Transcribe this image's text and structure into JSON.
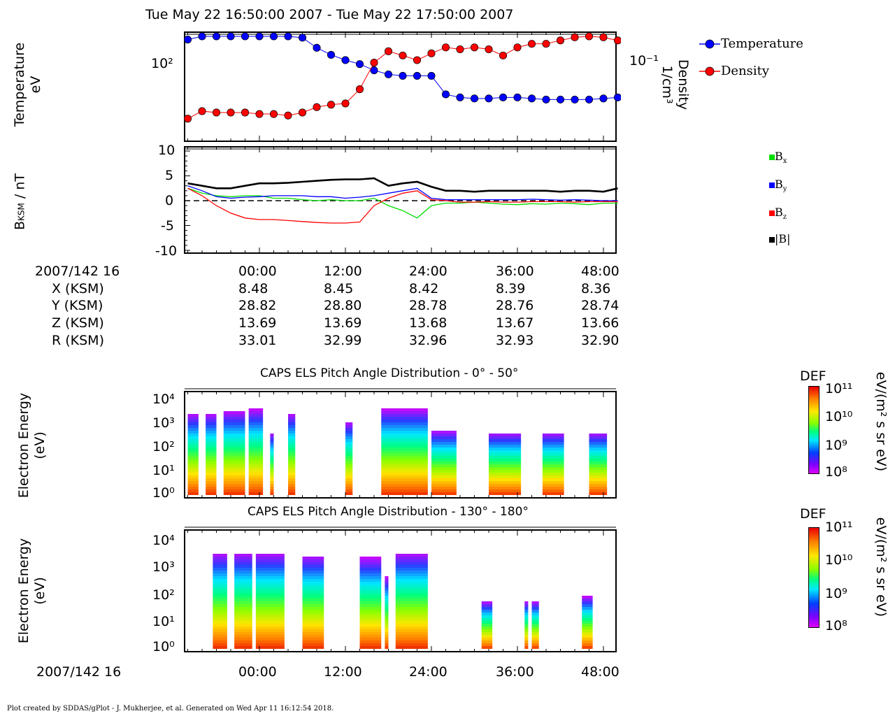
{
  "header": {
    "title": "Tue May 22 16:50:00 2007 - Tue May 22 17:50:00 2007"
  },
  "panel1": {
    "ylabel_left": "Temperature eV",
    "ylabel_left_line1": "Temperature",
    "ylabel_left_line2": "eV",
    "ylabel_right_line1": "Density",
    "ylabel_right_line2": "1/cm³",
    "left_tick": "10²",
    "right_tick": "10⁻¹",
    "legend": [
      {
        "label": "Temperature",
        "color": "#0000ff"
      },
      {
        "label": "Density",
        "color": "#ff0000"
      }
    ]
  },
  "panel2": {
    "ylabel": "BKSM / nT",
    "ylabel_main": "B",
    "ylabel_sub": "KSM",
    "ylabel_rest": " / nT",
    "yticks": [
      "10",
      "5",
      "0",
      "-5",
      "-10"
    ],
    "legend": [
      {
        "label": "B",
        "sub": "x",
        "color": "#00dd00"
      },
      {
        "label": "B",
        "sub": "y",
        "color": "#0000ff"
      },
      {
        "label": "B",
        "sub": "z",
        "color": "#ff0000"
      },
      {
        "label": "|B|",
        "sub": "",
        "color": "#000000"
      }
    ]
  },
  "ephemeris": {
    "date_label": "2007/142 16",
    "times": [
      "00:00",
      "12:00",
      "24:00",
      "36:00",
      "48:00"
    ],
    "rows": [
      {
        "label": "X (KSM)",
        "values": [
          "8.48",
          "8.45",
          "8.42",
          "8.39",
          "8.36"
        ]
      },
      {
        "label": "Y (KSM)",
        "values": [
          "28.82",
          "28.80",
          "28.78",
          "28.76",
          "28.74"
        ]
      },
      {
        "label": "Z (KSM)",
        "values": [
          "13.69",
          "13.69",
          "13.68",
          "13.67",
          "13.66"
        ]
      },
      {
        "label": "R (KSM)",
        "values": [
          "33.01",
          "32.99",
          "32.96",
          "32.93",
          "32.90"
        ]
      }
    ]
  },
  "spectrogram1": {
    "title": "CAPS ELS Pitch Angle Distribution - 0° - 50°",
    "ylabel_line1": "Electron Energy",
    "ylabel_line2": "(eV)",
    "yticks": [
      "10⁴",
      "10³",
      "10²",
      "10¹",
      "10⁰"
    ],
    "colorbar_title": "DEF",
    "colorbar_ticks": [
      "10¹¹",
      "10¹⁰",
      "10⁹",
      "10⁸"
    ],
    "colorbar_unit": "eV/(m² s sr eV)"
  },
  "spectrogram2": {
    "title": "CAPS ELS Pitch Angle Distribution - 130° - 180°",
    "ylabel_line1": "Electron Energy",
    "ylabel_line2": "(eV)",
    "yticks": [
      "10⁴",
      "10³",
      "10²",
      "10¹",
      "10⁰"
    ],
    "colorbar_title": "DEF",
    "colorbar_ticks": [
      "10¹¹",
      "10¹⁰",
      "10⁹",
      "10⁸"
    ],
    "colorbar_unit": "eV/(m² s sr eV)"
  },
  "bottom_axis": {
    "date_label": "2007/142 16",
    "times": [
      "00:00",
      "12:00",
      "24:00",
      "36:00",
      "48:00"
    ]
  },
  "footer": {
    "text": "Plot created by SDDAS/gPlot - J. Mukherjee, et al.  Generated on Wed Apr 11 16:12:54 2018."
  },
  "chart_data": [
    {
      "type": "scatter",
      "title": "Tue May 22 16:50:00 2007 - Tue May 22 17:50:00 2007",
      "xlabel": "",
      "ylabel": "Temperature eV",
      "y2label": "Density 1/cm³",
      "x_unit": "minutes after 17:00 (tick labels 00:00..48:00)",
      "xlim": [
        -10,
        50
      ],
      "yscale": "log",
      "series": [
        {
          "name": "Temperature",
          "color": "#0000ff",
          "axis": "left",
          "x": [
            -10,
            -8,
            -6,
            -4,
            -2,
            0,
            2,
            4,
            6,
            8,
            10,
            12,
            14,
            16,
            18,
            20,
            22,
            24,
            26,
            28,
            30,
            32,
            34,
            36,
            38,
            40,
            42,
            44,
            46,
            48,
            50
          ],
          "y": [
            150,
            160,
            175,
            170,
            165,
            175,
            178,
            160,
            155,
            130,
            115,
            105,
            98,
            88,
            82,
            80,
            80,
            80,
            58,
            55,
            54,
            54,
            55,
            55,
            54,
            53,
            53,
            53,
            53,
            54,
            55
          ]
        },
        {
          "name": "Density",
          "color": "#ff0000",
          "axis": "right",
          "x": [
            -10,
            -8,
            -6,
            -4,
            -2,
            0,
            2,
            4,
            6,
            8,
            10,
            12,
            14,
            16,
            18,
            20,
            22,
            24,
            26,
            28,
            30,
            32,
            34,
            36,
            38,
            40,
            42,
            44,
            46,
            48,
            50
          ],
          "y": [
            0.03,
            0.035,
            0.034,
            0.034,
            0.034,
            0.033,
            0.033,
            0.032,
            0.034,
            0.038,
            0.04,
            0.041,
            0.055,
            0.095,
            0.12,
            0.11,
            0.1,
            0.115,
            0.13,
            0.125,
            0.13,
            0.125,
            0.11,
            0.13,
            0.14,
            0.14,
            0.15,
            0.16,
            0.17,
            0.16,
            0.15
          ]
        }
      ]
    },
    {
      "type": "line",
      "ylabel": "BKSM / nT",
      "ylim": [
        -10,
        10
      ],
      "xlim": [
        -10,
        50
      ],
      "x": [
        -10,
        -8,
        -6,
        -4,
        -2,
        0,
        2,
        4,
        6,
        8,
        10,
        12,
        14,
        16,
        18,
        20,
        22,
        24,
        26,
        28,
        30,
        32,
        34,
        36,
        38,
        40,
        42,
        44,
        46,
        48,
        50
      ],
      "series": [
        {
          "name": "Bx",
          "color": "#00dd00",
          "values": [
            2.5,
            1.5,
            1.0,
            0.8,
            1.0,
            1.0,
            0.5,
            0.5,
            0.2,
            0.0,
            0.2,
            0.0,
            0.0,
            0.5,
            -1.0,
            -2.0,
            -3.5,
            -1.0,
            -0.5,
            -0.5,
            -0.3,
            -0.5,
            -0.7,
            -0.8,
            -0.6,
            -0.7,
            -0.5,
            -0.6,
            -0.8,
            -0.5,
            -0.5
          ]
        },
        {
          "name": "By",
          "color": "#0000ff",
          "values": [
            3.0,
            2.0,
            0.8,
            0.5,
            0.7,
            0.8,
            1.0,
            1.0,
            1.0,
            0.8,
            0.8,
            0.5,
            0.7,
            1.0,
            1.5,
            2.0,
            2.5,
            0.5,
            0.2,
            0.2,
            0.2,
            0.2,
            0.2,
            0.2,
            0.3,
            0.2,
            0.1,
            0.2,
            0.1,
            0.0,
            0.0
          ]
        },
        {
          "name": "Bz",
          "color": "#ff0000",
          "values": [
            2.5,
            1.0,
            -1.0,
            -2.5,
            -3.5,
            -3.8,
            -3.8,
            -4.0,
            -4.2,
            -4.4,
            -4.5,
            -4.5,
            -4.3,
            -1.0,
            0.5,
            1.5,
            2.0,
            0.2,
            0.0,
            -0.3,
            -0.3,
            -0.2,
            -0.3,
            -0.3,
            -0.2,
            -0.2,
            -0.2,
            -0.3,
            -0.2,
            -0.2,
            -0.2
          ]
        },
        {
          "name": "|B|",
          "color": "#000000",
          "values": [
            3.5,
            3.0,
            2.5,
            2.5,
            3.0,
            3.5,
            3.5,
            3.6,
            3.8,
            4.0,
            4.2,
            4.3,
            4.3,
            4.5,
            3.0,
            3.5,
            3.8,
            2.8,
            2.0,
            2.0,
            1.8,
            2.0,
            2.0,
            2.0,
            2.0,
            2.0,
            1.8,
            2.0,
            2.0,
            1.8,
            2.5
          ]
        }
      ]
    }
  ]
}
